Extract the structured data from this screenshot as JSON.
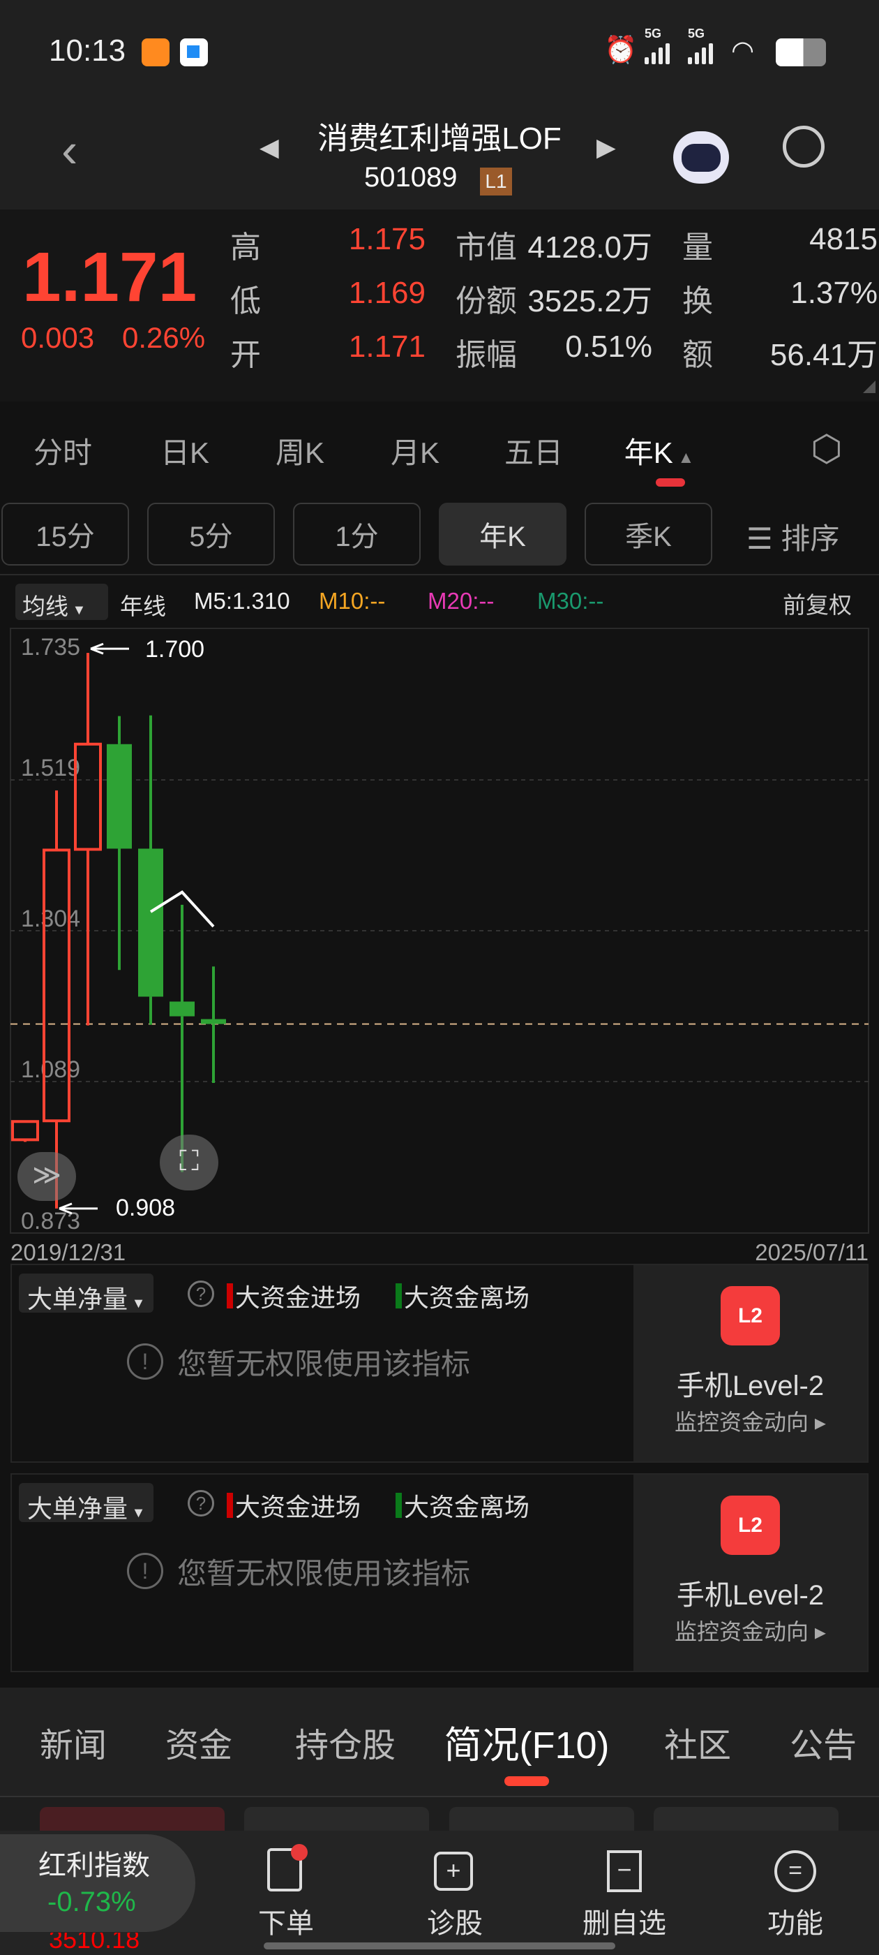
{
  "status_bar": {
    "time": "10:13",
    "network_1": "5G",
    "network_2": "5G"
  },
  "header": {
    "title": "消费红利增强LOF",
    "code": "501089",
    "level_badge": "L1"
  },
  "quote": {
    "price": "1.171",
    "change": "0.003",
    "change_pct": "0.26%",
    "rows": [
      {
        "l1": "高",
        "v1": "1.175",
        "l2": "市值",
        "v2": "4128.0万",
        "l3": "量",
        "v3": "4815"
      },
      {
        "l1": "低",
        "v1": "1.169",
        "l2": "份额",
        "v2": "3525.2万",
        "l3": "换",
        "v3": "1.37%"
      },
      {
        "l1": "开",
        "v1": "1.171",
        "l2": "振幅",
        "v2": "0.51%",
        "l3": "额",
        "v3": "56.41万"
      }
    ]
  },
  "period_tabs": [
    "分时",
    "日K",
    "周K",
    "月K",
    "五日",
    "年K"
  ],
  "period_active": "年K",
  "sub_periods": [
    "15分",
    "5分",
    "1分",
    "年K",
    "季K"
  ],
  "sort_label": "排序",
  "ma_bar": {
    "selector": "均线",
    "type": "年线",
    "m5": "M5:1.310",
    "m10": "M10:--",
    "m20": "M20:--",
    "m30": "M30:--",
    "adjust": "前复权"
  },
  "colors": {
    "up": "#ff4433",
    "down": "#2ea335",
    "m10": "#f5a623",
    "m20": "#e83ab5",
    "m30": "#1a9a6e",
    "accent": "#ff4433"
  },
  "chart_data": {
    "type": "candlestick",
    "ylim": [
      0.873,
      1.735
    ],
    "y_ticks": [
      "1.735",
      "1.519",
      "1.304",
      "1.089",
      "0.873"
    ],
    "x_start_label": "2019/12/31",
    "x_end_label": "2025/07/11",
    "max_label": "1.700",
    "min_label": "0.908",
    "current_price": 1.171,
    "candles": [
      {
        "open": 1.006,
        "close": 1.032,
        "high": 1.032,
        "low": 1.003
      },
      {
        "open": 1.033,
        "close": 1.419,
        "high": 1.504,
        "low": 0.908
      },
      {
        "open": 1.42,
        "close": 1.57,
        "high": 1.7,
        "low": 1.169
      },
      {
        "open": 1.57,
        "close": 1.421,
        "high": 1.61,
        "low": 1.248
      },
      {
        "open": 1.421,
        "close": 1.21,
        "high": 1.611,
        "low": 1.17
      },
      {
        "open": 1.203,
        "close": 1.182,
        "high": 1.341,
        "low": 0.96
      },
      {
        "open": 1.178,
        "close": 1.171,
        "high": 1.253,
        "low": 1.087
      }
    ],
    "ma5": [
      null,
      null,
      null,
      null,
      1.331,
      1.359,
      1.31
    ]
  },
  "indicator_panels": [
    {
      "selector": "大单净量",
      "legend_in": "大资金进场",
      "legend_out": "大资金离场",
      "notice": "您暂无权限使用该指标",
      "promo_title": "手机Level-2",
      "promo_sub": "监控资金动向",
      "promo_icon": "L2"
    },
    {
      "selector": "大单净量",
      "legend_in": "大资金进场",
      "legend_out": "大资金离场",
      "notice": "您暂无权限使用该指标",
      "promo_title": "手机Level-2",
      "promo_sub": "监控资金动向",
      "promo_icon": "L2"
    }
  ],
  "bottom_tabs": [
    "新闻",
    "资金",
    "持仓股",
    "简况(F10)",
    "社区",
    "公告"
  ],
  "bottom_tab_active": "简况(F10)",
  "index_pill": {
    "name": "红利指数",
    "change": "-0.73%",
    "value": "3510.18"
  },
  "bottom_bar": [
    "下单",
    "诊股",
    "删自选",
    "功能"
  ]
}
